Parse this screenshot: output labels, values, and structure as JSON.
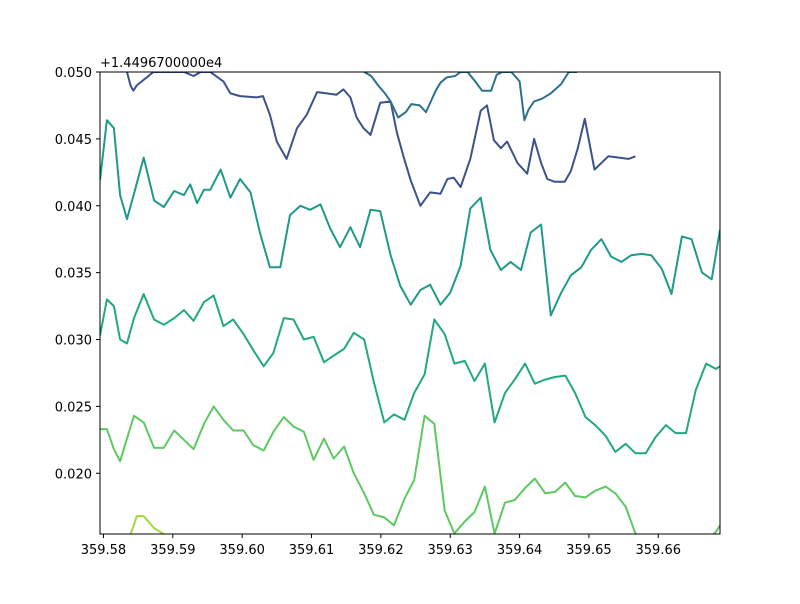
{
  "chart_data": {
    "type": "line",
    "title": "",
    "xlabel": "",
    "ylabel": "",
    "xlim": [
      359.5795,
      359.6689
    ],
    "ylim": [
      0.01546,
      0.05
    ],
    "y_offset_label": "+1.4496700000e4",
    "x_ticks": [
      359.58,
      359.59,
      359.6,
      359.61,
      359.62,
      359.63,
      359.64,
      359.65,
      359.66
    ],
    "x_tick_labels": [
      "359.58",
      "359.59",
      "359.60",
      "359.61",
      "359.62",
      "359.63",
      "359.64",
      "359.65",
      "359.66"
    ],
    "y_ticks": [
      0.02,
      0.025,
      0.03,
      0.035,
      0.04,
      0.045,
      0.05
    ],
    "y_tick_labels": [
      "0.020",
      "0.025",
      "0.030",
      "0.035",
      "0.040",
      "0.045",
      "0.050"
    ],
    "grid": false,
    "series": [
      {
        "color": "#3b528b",
        "x": [
          359.5834,
          359.5839,
          359.5843,
          359.5848,
          359.5872,
          359.5916,
          359.593,
          359.594,
          359.5954,
          359.5973,
          359.5983,
          359.5997,
          359.6021,
          359.603,
          359.604,
          359.605,
          359.6064,
          359.6079,
          359.6093,
          359.6108,
          359.6122,
          359.6136,
          359.6146,
          359.6156,
          359.6165,
          359.6175,
          359.6185,
          359.6199,
          359.6214,
          359.6223,
          359.6233,
          359.6243,
          359.6257,
          359.6271,
          359.6286,
          359.6296,
          359.6305,
          359.6315,
          359.6329,
          359.6344,
          359.6353,
          359.6363,
          359.6373,
          359.6382,
          359.6397,
          359.6411,
          359.6421,
          359.6431,
          359.644,
          359.645,
          359.6465,
          359.6474,
          359.6484,
          359.6494,
          359.6508,
          359.6528,
          359.6557,
          359.6567
        ],
        "y": [
          0.05,
          0.049,
          0.0486,
          0.049,
          0.05,
          0.05,
          0.0497,
          0.05,
          0.05,
          0.0493,
          0.0484,
          0.0482,
          0.0481,
          0.0482,
          0.0468,
          0.0448,
          0.0435,
          0.0458,
          0.0468,
          0.0485,
          0.0484,
          0.0483,
          0.0487,
          0.0481,
          0.0466,
          0.0458,
          0.0453,
          0.0477,
          0.0478,
          0.0455,
          0.0436,
          0.0419,
          0.04,
          0.041,
          0.0409,
          0.042,
          0.0421,
          0.0414,
          0.0435,
          0.0471,
          0.0475,
          0.0449,
          0.0443,
          0.0448,
          0.0432,
          0.0424,
          0.045,
          0.0432,
          0.042,
          0.0418,
          0.0418,
          0.0426,
          0.0443,
          0.0465,
          0.0427,
          0.0437,
          0.0435,
          0.0437
        ]
      },
      {
        "color": "#2c728e",
        "x": [
          359.6176,
          359.6186,
          359.6196,
          359.6206,
          359.6214,
          359.6225,
          359.6236,
          359.6244,
          359.6256,
          359.6265,
          359.6279,
          359.6286,
          359.6295,
          359.6307,
          359.6315,
          359.6325,
          359.6336,
          359.6346,
          359.6359,
          359.6367,
          359.6375,
          359.6388,
          359.64,
          359.6407,
          359.6413,
          359.6421,
          359.6432,
          359.6445,
          359.646,
          359.6471,
          359.6483
        ],
        "y": [
          0.05,
          0.0497,
          0.049,
          0.0484,
          0.0478,
          0.0466,
          0.047,
          0.0476,
          0.0475,
          0.047,
          0.0486,
          0.0492,
          0.0496,
          0.0497,
          0.05,
          0.05,
          0.0493,
          0.0486,
          0.0486,
          0.0498,
          0.05,
          0.05,
          0.0493,
          0.0464,
          0.0472,
          0.0478,
          0.048,
          0.0484,
          0.0491,
          0.05,
          0.05
        ]
      },
      {
        "color": "#1f9a8a",
        "x": [
          359.5795,
          359.5805,
          359.5815,
          359.5824,
          359.5834,
          359.5844,
          359.5858,
          359.5873,
          359.5887,
          359.5902,
          359.5916,
          359.5925,
          359.5935,
          359.5945,
          359.5954,
          359.5969,
          359.5983,
          359.5997,
          359.6012,
          359.6026,
          359.604,
          359.6055,
          359.6069,
          359.6084,
          359.6098,
          359.6113,
          359.6127,
          359.6141,
          359.6156,
          359.617,
          359.6185,
          359.6199,
          359.6214,
          359.6228,
          359.6243,
          359.6257,
          359.6271,
          359.6286,
          359.63,
          359.6315,
          359.6329,
          359.6344,
          359.6358,
          359.6373,
          359.6387,
          359.6402,
          359.6416,
          359.6431,
          359.6445,
          359.646,
          359.6474,
          359.6489,
          359.6503,
          359.6518,
          359.6532,
          359.6547,
          359.6561,
          359.6576,
          359.659,
          359.6605,
          359.6619,
          359.6634,
          359.6648,
          359.6663,
          359.6677,
          359.6689
        ],
        "y": [
          0.0419,
          0.0464,
          0.0458,
          0.0408,
          0.039,
          0.0409,
          0.0436,
          0.0404,
          0.0399,
          0.0411,
          0.0408,
          0.0416,
          0.0402,
          0.0412,
          0.0412,
          0.0427,
          0.0406,
          0.042,
          0.041,
          0.0379,
          0.0354,
          0.0354,
          0.0393,
          0.04,
          0.0397,
          0.0401,
          0.0383,
          0.0369,
          0.0384,
          0.0369,
          0.0397,
          0.0396,
          0.0363,
          0.034,
          0.0326,
          0.0337,
          0.0341,
          0.0326,
          0.0335,
          0.0355,
          0.0398,
          0.0406,
          0.0367,
          0.0352,
          0.0358,
          0.0352,
          0.038,
          0.0386,
          0.0318,
          0.0335,
          0.0348,
          0.0354,
          0.0367,
          0.0375,
          0.0362,
          0.0358,
          0.0363,
          0.0364,
          0.0363,
          0.0353,
          0.0334,
          0.0377,
          0.0375,
          0.035,
          0.0345,
          0.0382
        ]
      },
      {
        "color": "#22a884",
        "x": [
          359.5795,
          359.5805,
          359.5815,
          359.5824,
          359.5834,
          359.5844,
          359.5858,
          359.5873,
          359.5887,
          359.5902,
          359.5916,
          359.593,
          359.5945,
          359.5959,
          359.5973,
          359.5987,
          359.6002,
          359.6016,
          359.6031,
          359.6045,
          359.606,
          359.6074,
          359.6089,
          359.6103,
          359.6118,
          359.6132,
          359.6147,
          359.6161,
          359.6176,
          359.619,
          359.6205,
          359.6219,
          359.6234,
          359.6248,
          359.6263,
          359.6277,
          359.6292,
          359.6306,
          359.6321,
          359.6335,
          359.635,
          359.6364,
          359.6379,
          359.6393,
          359.6408,
          359.6422,
          359.6437,
          359.6451,
          359.6466,
          359.648,
          359.6495,
          359.6509,
          359.6524,
          359.6538,
          359.6553,
          359.6567,
          359.6582,
          359.6596,
          359.6611,
          359.6625,
          359.664,
          359.6654,
          359.6669,
          359.6683,
          359.6689
        ],
        "y": [
          0.0303,
          0.033,
          0.0325,
          0.03,
          0.0297,
          0.0316,
          0.0334,
          0.0315,
          0.0311,
          0.0316,
          0.0322,
          0.0314,
          0.0328,
          0.0333,
          0.031,
          0.0315,
          0.0304,
          0.0292,
          0.028,
          0.029,
          0.0316,
          0.0315,
          0.03,
          0.0302,
          0.0283,
          0.0288,
          0.0293,
          0.0305,
          0.03,
          0.0268,
          0.0238,
          0.0244,
          0.024,
          0.026,
          0.0274,
          0.0315,
          0.0304,
          0.0282,
          0.0284,
          0.0269,
          0.0282,
          0.0238,
          0.026,
          0.027,
          0.0282,
          0.0267,
          0.027,
          0.0272,
          0.0273,
          0.026,
          0.0242,
          0.0236,
          0.0228,
          0.0216,
          0.0222,
          0.0215,
          0.0215,
          0.0227,
          0.0236,
          0.023,
          0.023,
          0.0262,
          0.0282,
          0.0278,
          0.028
        ]
      },
      {
        "color": "#5ec962",
        "x": [
          359.5795,
          359.5805,
          359.5815,
          359.5824,
          359.5834,
          359.5844,
          359.5858,
          359.5873,
          359.5887,
          359.5902,
          359.5916,
          359.593,
          359.5945,
          359.5959,
          359.5973,
          359.5987,
          359.6002,
          359.6016,
          359.6031,
          359.6045,
          359.606,
          359.6074,
          359.6089,
          359.6103,
          359.6118,
          359.6132,
          359.6147,
          359.6161,
          359.6176,
          359.619,
          359.6205,
          359.6219,
          359.6234,
          359.6248,
          359.6263,
          359.6277,
          359.6292,
          359.6306,
          359.6321,
          359.6335,
          359.635,
          359.6364,
          359.6379,
          359.6393,
          359.6408,
          359.6422,
          359.6437,
          359.6451,
          359.6466,
          359.648,
          359.6495,
          359.6509,
          359.6524,
          359.6538,
          359.6553,
          359.6567,
          359.6582,
          359.6596,
          359.6611,
          359.6625,
          359.664,
          359.6654,
          359.6669,
          359.6683,
          359.6689
        ],
        "y": [
          0.0233,
          0.0233,
          0.0218,
          0.0209,
          0.0226,
          0.0243,
          0.0238,
          0.0219,
          0.0219,
          0.0232,
          0.0225,
          0.0218,
          0.0237,
          0.025,
          0.024,
          0.0232,
          0.0232,
          0.0221,
          0.0217,
          0.0231,
          0.0242,
          0.0235,
          0.0231,
          0.021,
          0.0226,
          0.0211,
          0.022,
          0.02,
          0.0185,
          0.0169,
          0.0167,
          0.0161,
          0.0181,
          0.0195,
          0.0243,
          0.0237,
          0.0172,
          0.0155,
          0.0164,
          0.0171,
          0.019,
          0.0155,
          0.0178,
          0.018,
          0.0189,
          0.0196,
          0.0185,
          0.0186,
          0.0193,
          0.0183,
          0.0182,
          0.0187,
          0.019,
          0.0185,
          0.0175,
          0.0155,
          0.015,
          0.015,
          0.015,
          0.015,
          0.015,
          0.015,
          0.015,
          0.0156,
          0.0161
        ]
      },
      {
        "color": "#a0da39",
        "x": [
          359.5839,
          359.5843,
          359.5848,
          359.5858,
          359.5873,
          359.5887
        ],
        "y": [
          0.01546,
          0.016,
          0.0168,
          0.0168,
          0.0159,
          0.01546
        ]
      }
    ]
  }
}
